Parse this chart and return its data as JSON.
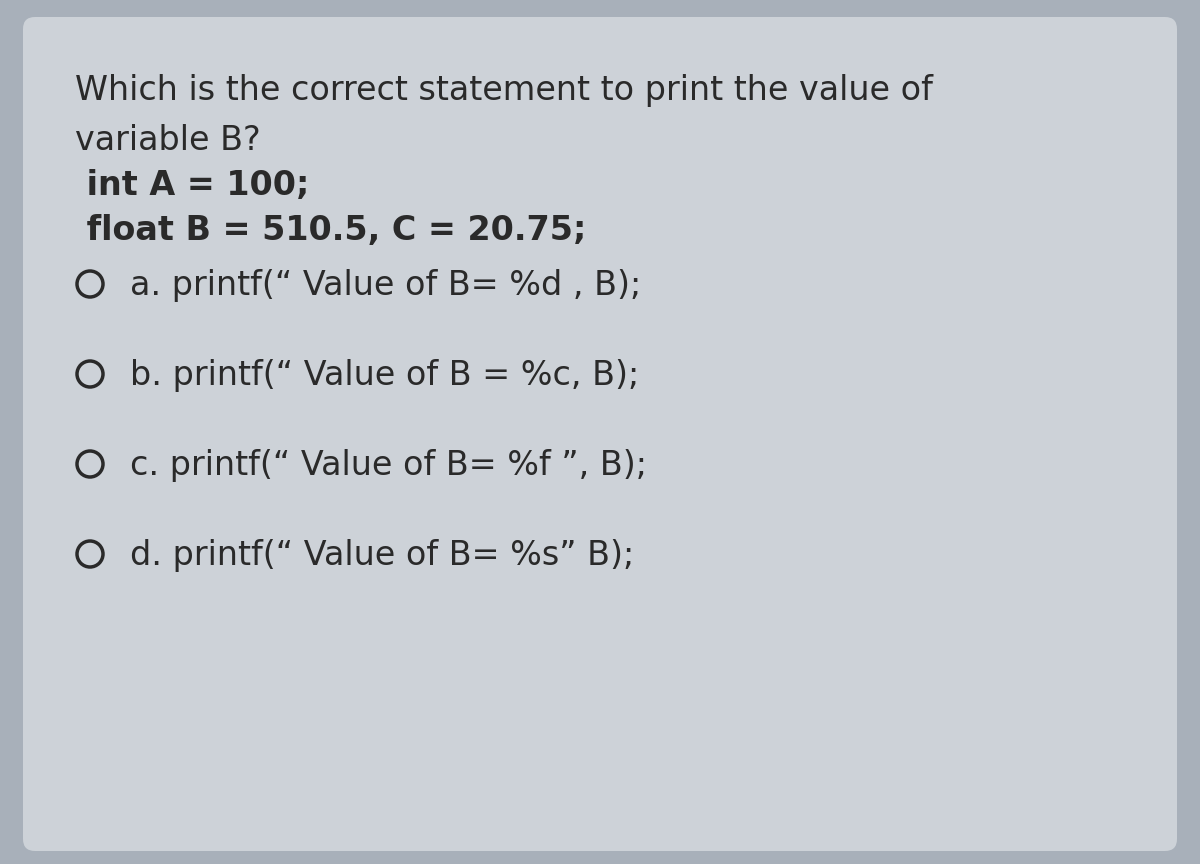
{
  "bg_outer": "#a8b0ba",
  "bg_inner": "#cdd2d8",
  "text_color": "#2a2a2a",
  "question_line1": "Which is the correct statement to print the value of",
  "question_line2": "variable B?",
  "code_line1": " int A = 100;",
  "code_line2": " float B = 510.5, C = 20.75;",
  "options": [
    "a. printf(“ Value of B= %d , B);",
    "b. printf(“ Value of B = %c, B);",
    "c. printf(“ Value of B= %f ”, B);",
    "d. printf(“ Value of B= %s” B);"
  ],
  "figsize": [
    12.0,
    8.64
  ],
  "dpi": 100
}
